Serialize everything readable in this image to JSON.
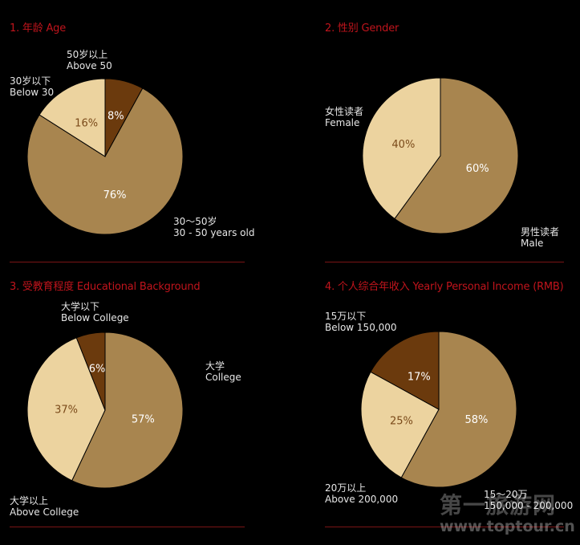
{
  "colors": {
    "background": "#000000",
    "title": "#c0141c",
    "divider": "#7a1416",
    "label": "#e6e6e6",
    "slice_dark": "#6b3a0d",
    "slice_light": "#ecd39f",
    "slice_mid": "#a8854f",
    "pct_on_light": "#7a4a1a",
    "pct_on_dark": "#ffffff"
  },
  "chart_data": [
    {
      "type": "pie",
      "title": "1. 年龄 Age",
      "slices": [
        {
          "label_cn": "50岁以上",
          "label_en": "Above 50",
          "value": 8,
          "color": "slice_dark",
          "pct_text": "8%"
        },
        {
          "label_cn": "30～50岁",
          "label_en": "30 - 50 years old",
          "value": 76,
          "color": "slice_mid",
          "pct_text": "76%"
        },
        {
          "label_cn": "30岁以下",
          "label_en": "Below 30",
          "value": 16,
          "color": "slice_light",
          "pct_text": "16%"
        }
      ]
    },
    {
      "type": "pie",
      "title": "2. 性别 Gender",
      "slices": [
        {
          "label_cn": "男性读者",
          "label_en": "Male",
          "value": 60,
          "color": "slice_mid",
          "pct_text": "60%"
        },
        {
          "label_cn": "女性读者",
          "label_en": "Female",
          "value": 40,
          "color": "slice_light",
          "pct_text": "40%"
        }
      ]
    },
    {
      "type": "pie",
      "title": "3. 受教育程度 Educational Background",
      "slices": [
        {
          "label_cn": "大学",
          "label_en": "College",
          "value": 57,
          "color": "slice_mid",
          "pct_text": "57%"
        },
        {
          "label_cn": "大学以上",
          "label_en": "Above College",
          "value": 37,
          "color": "slice_light",
          "pct_text": "37%"
        },
        {
          "label_cn": "大学以下",
          "label_en": "Below College",
          "value": 6,
          "color": "slice_dark",
          "pct_text": "6%"
        }
      ]
    },
    {
      "type": "pie",
      "title": "4. 个人综合年收入 Yearly Personal Income (RMB)",
      "slices": [
        {
          "label_cn": "15～20万",
          "label_en": "150,000 - 200,000",
          "value": 58,
          "color": "slice_mid",
          "pct_text": "58%"
        },
        {
          "label_cn": "20万以上",
          "label_en": "Above 200,000",
          "value": 25,
          "color": "slice_light",
          "pct_text": "25%"
        },
        {
          "label_cn": "15万以下",
          "label_en": "Below 150,000",
          "value": 17,
          "color": "slice_dark",
          "pct_text": "17%"
        }
      ]
    }
  ],
  "watermark": {
    "text": "第一旅游网",
    "url": "www.toptour.cn"
  }
}
